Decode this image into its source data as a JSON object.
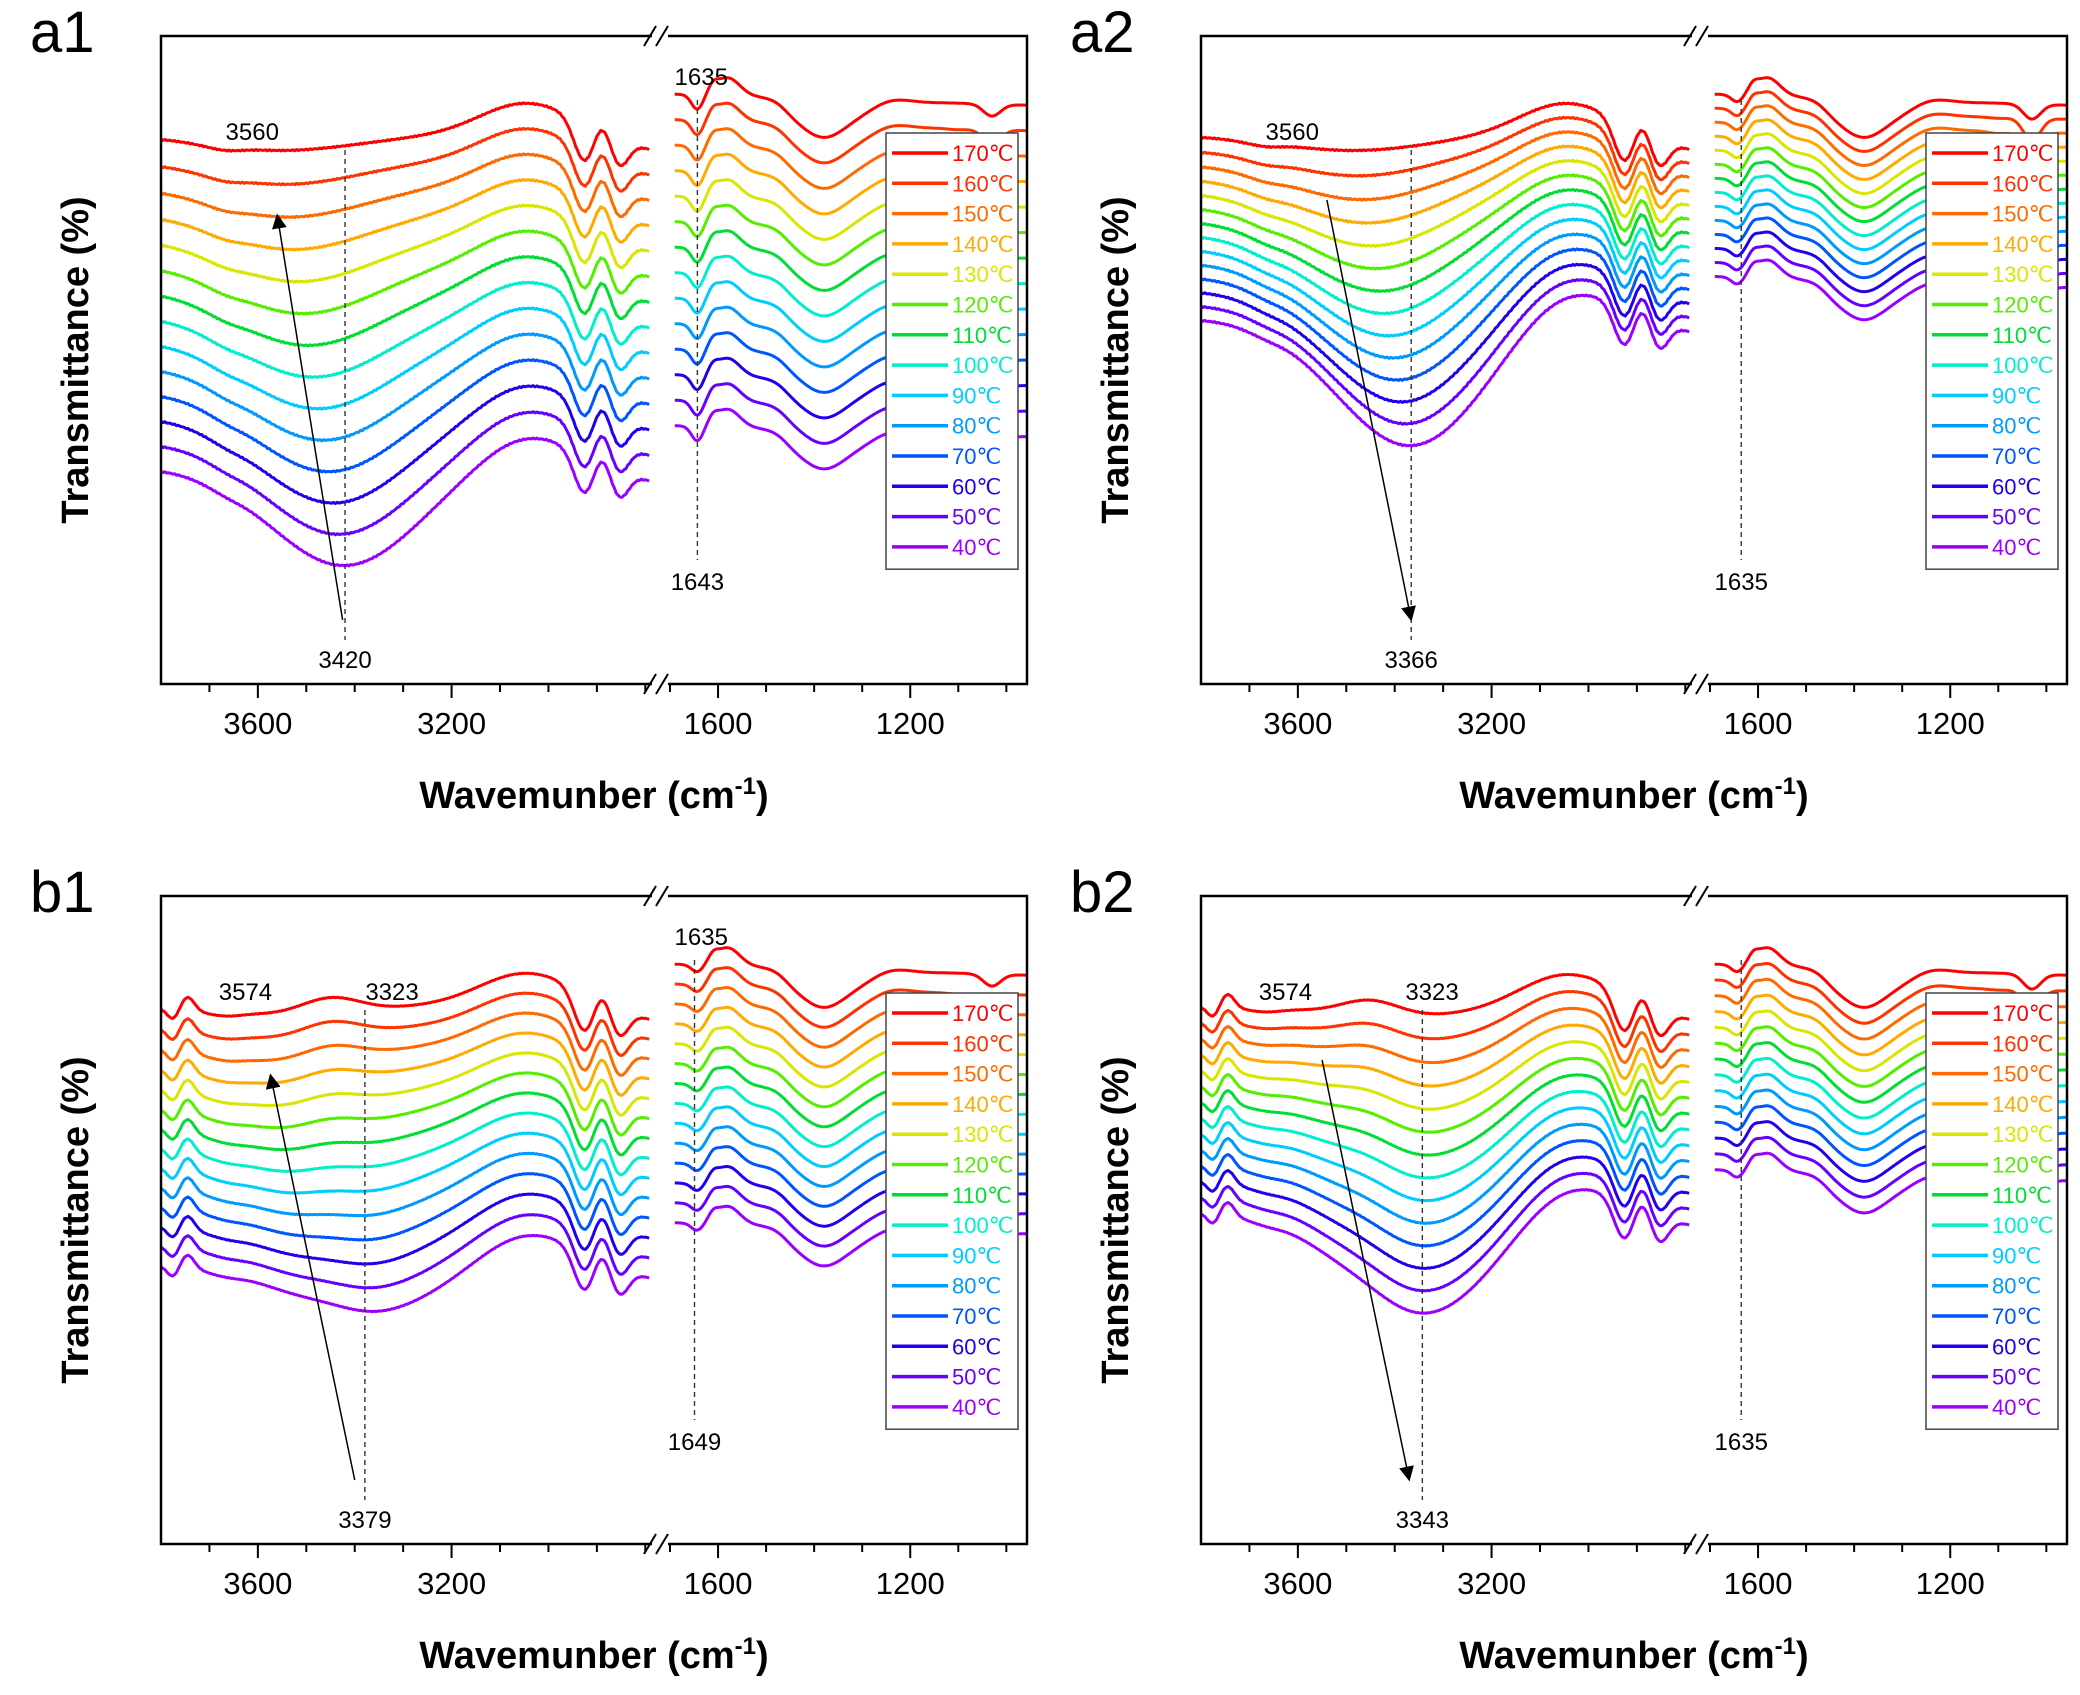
{
  "figure": {
    "temperatures_label_suffix": "℃"
  },
  "chart_data": [
    {
      "id": "a1",
      "type": "line",
      "panel_label": "a1",
      "xlabel": "Wavemunber (cm-1)",
      "xlabel_main": "Wavemunber (cm",
      "xlabel_sup": "-1",
      "xlabel_end": ")",
      "ylabel": "Transmittance (%)",
      "x_axis": {
        "reversed": true,
        "broken": true,
        "segments": [
          [
            3800,
            2780
          ],
          [
            1700,
            957
          ]
        ],
        "ticks": [
          3600,
          3200,
          1600,
          1200
        ],
        "minor_step": 100
      },
      "y_axis": {
        "ticks": [],
        "units": "arbitrary, stacked"
      },
      "legend": {
        "position": "right",
        "entries": [
          "170℃",
          "160℃",
          "150℃",
          "140℃",
          "130℃",
          "120℃",
          "110℃",
          "100℃",
          "90℃",
          "80℃",
          "70℃",
          "60℃",
          "50℃",
          "40℃"
        ]
      },
      "series_colors": [
        "#ff0000",
        "#ff3300",
        "#ff6a00",
        "#ffaa00",
        "#d8e600",
        "#55ee00",
        "#00dd33",
        "#00eecc",
        "#00ccff",
        "#0099ff",
        "#0055ff",
        "#2200ee",
        "#6600ff",
        "#9900ff"
      ],
      "annotations": [
        {
          "text": "3560",
          "wavenumber": 3560,
          "kind": "label"
        },
        {
          "text": "3420",
          "wavenumber": 3420,
          "kind": "label"
        },
        {
          "text": "1635",
          "wavenumber": 1635,
          "kind": "label"
        },
        {
          "text": "1643",
          "wavenumber": 1643,
          "kind": "label"
        }
      ],
      "arrow": {
        "from_wavenumber": 3425,
        "to_wavenumber": 3560,
        "direction": "increasing temperature"
      },
      "guides": [
        3420,
        1643
      ],
      "series_params": {
        "spacing": 1.0,
        "oh_depth_start": 0.4,
        "oh_depth_end": 3.2,
        "oh_center_start": 3560,
        "oh_center_end": 3420,
        "low_dip_visible_from": 0
      }
    },
    {
      "id": "a2",
      "type": "line",
      "panel_label": "a2",
      "xlabel": "Wavemunber (cm-1)",
      "xlabel_main": "Wavemunber (cm",
      "xlabel_sup": "-1",
      "xlabel_end": ")",
      "ylabel": "Transmittance (%)",
      "x_axis": {
        "reversed": true,
        "broken": true,
        "segments": [
          [
            3800,
            2780
          ],
          [
            1700,
            957
          ]
        ],
        "ticks": [
          3600,
          3200,
          1600,
          1200
        ],
        "minor_step": 100
      },
      "y_axis": {
        "ticks": [],
        "units": "arbitrary, stacked"
      },
      "legend": {
        "position": "right",
        "entries": [
          "170℃",
          "160℃",
          "150℃",
          "140℃",
          "130℃",
          "120℃",
          "110℃",
          "100℃",
          "90℃",
          "80℃",
          "70℃",
          "60℃",
          "50℃",
          "40℃"
        ]
      },
      "series_colors": [
        "#ff0000",
        "#ff3300",
        "#ff6a00",
        "#ffaa00",
        "#d8e600",
        "#55ee00",
        "#00dd33",
        "#00eecc",
        "#00ccff",
        "#0099ff",
        "#0055ff",
        "#2200ee",
        "#6600ff",
        "#9900ff"
      ],
      "annotations": [
        {
          "text": "3560",
          "wavenumber": 3560,
          "kind": "label"
        },
        {
          "text": "3366",
          "wavenumber": 3366,
          "kind": "label"
        },
        {
          "text": "1635",
          "wavenumber": 1635,
          "kind": "label"
        }
      ],
      "arrow": {
        "from_wavenumber": 3540,
        "to_wavenumber": 3366,
        "direction": "decreasing temperature"
      },
      "guides": [
        3366,
        1635
      ],
      "series_params": {
        "spacing": 0.55,
        "oh_depth_start": 0.4,
        "oh_depth_end": 4.2,
        "oh_center_start": 3480,
        "oh_center_end": 3366,
        "low_dip_visible_from": 0
      }
    },
    {
      "id": "b1",
      "type": "line",
      "panel_label": "b1",
      "xlabel": "Wavemunber (cm-1)",
      "xlabel_main": "Wavemunber (cm",
      "xlabel_sup": "-1",
      "xlabel_end": ")",
      "ylabel": "Transmittance (%)",
      "x_axis": {
        "reversed": true,
        "broken": true,
        "segments": [
          [
            3800,
            2780
          ],
          [
            1700,
            957
          ]
        ],
        "ticks": [
          3600,
          3200,
          1600,
          1200
        ],
        "minor_step": 100
      },
      "y_axis": {
        "ticks": [],
        "units": "arbitrary, stacked"
      },
      "legend": {
        "position": "right",
        "entries": [
          "170℃",
          "160℃",
          "150℃",
          "140℃",
          "130℃",
          "120℃",
          "110℃",
          "100℃",
          "90℃",
          "80℃",
          "70℃",
          "60℃",
          "50℃",
          "40℃"
        ]
      },
      "series_colors": [
        "#ff0000",
        "#ff3300",
        "#ff6a00",
        "#ffaa00",
        "#d8e600",
        "#55ee00",
        "#00dd33",
        "#00eecc",
        "#00ccff",
        "#0099ff",
        "#0055ff",
        "#2200ee",
        "#6600ff",
        "#9900ff"
      ],
      "annotations": [
        {
          "text": "3574",
          "wavenumber": 3574,
          "kind": "label"
        },
        {
          "text": "3323",
          "wavenumber": 3323,
          "kind": "label"
        },
        {
          "text": "3379",
          "wavenumber": 3379,
          "kind": "label"
        },
        {
          "text": "1635",
          "wavenumber": 1635,
          "kind": "label"
        },
        {
          "text": "1649",
          "wavenumber": 1649,
          "kind": "label"
        }
      ],
      "arrow": {
        "from_wavenumber": 3400,
        "to_wavenumber": 3574,
        "direction": "increasing temperature"
      },
      "guides": [
        3379,
        1649
      ],
      "series_params": {
        "spacing": 0.78,
        "oh_depth_start": 0.2,
        "oh_depth_end": 1.6,
        "oh_center_start": 3574,
        "oh_center_end": 3379,
        "low_dip_visible_from": 0
      }
    },
    {
      "id": "b2",
      "type": "line",
      "panel_label": "b2",
      "xlabel": "Wavemunber (cm-1)",
      "xlabel_main": "Wavemunber (cm",
      "xlabel_sup": "-1",
      "xlabel_end": ")",
      "ylabel": "Transmittance (%)",
      "x_axis": {
        "reversed": true,
        "broken": true,
        "segments": [
          [
            3800,
            2780
          ],
          [
            1700,
            957
          ]
        ],
        "ticks": [
          3600,
          3200,
          1600,
          1200
        ],
        "minor_step": 100
      },
      "y_axis": {
        "ticks": [],
        "units": "arbitrary, stacked"
      },
      "legend": {
        "position": "right",
        "entries": [
          "170℃",
          "160℃",
          "150℃",
          "140℃",
          "130℃",
          "120℃",
          "110℃",
          "100℃",
          "90℃",
          "80℃",
          "70℃",
          "60℃",
          "50℃",
          "40℃"
        ]
      },
      "series_colors": [
        "#ff0000",
        "#ff3300",
        "#ff6a00",
        "#ffaa00",
        "#d8e600",
        "#55ee00",
        "#00dd33",
        "#00eecc",
        "#00ccff",
        "#0099ff",
        "#0055ff",
        "#2200ee",
        "#6600ff",
        "#9900ff"
      ],
      "annotations": [
        {
          "text": "3574",
          "wavenumber": 3574,
          "kind": "label"
        },
        {
          "text": "3323",
          "wavenumber": 3323,
          "kind": "label"
        },
        {
          "text": "3343",
          "wavenumber": 3343,
          "kind": "label"
        },
        {
          "text": "1635",
          "wavenumber": 1635,
          "kind": "label"
        }
      ],
      "arrow": {
        "from_wavenumber": 3550,
        "to_wavenumber": 3370,
        "direction": "decreasing temperature"
      },
      "guides": [
        3343,
        1635
      ],
      "series_params": {
        "spacing": 0.62,
        "oh_depth_start": 0.3,
        "oh_depth_end": 3.4,
        "oh_center_start": 3340,
        "oh_center_end": 3343,
        "low_dip_visible_from": 0
      }
    }
  ]
}
